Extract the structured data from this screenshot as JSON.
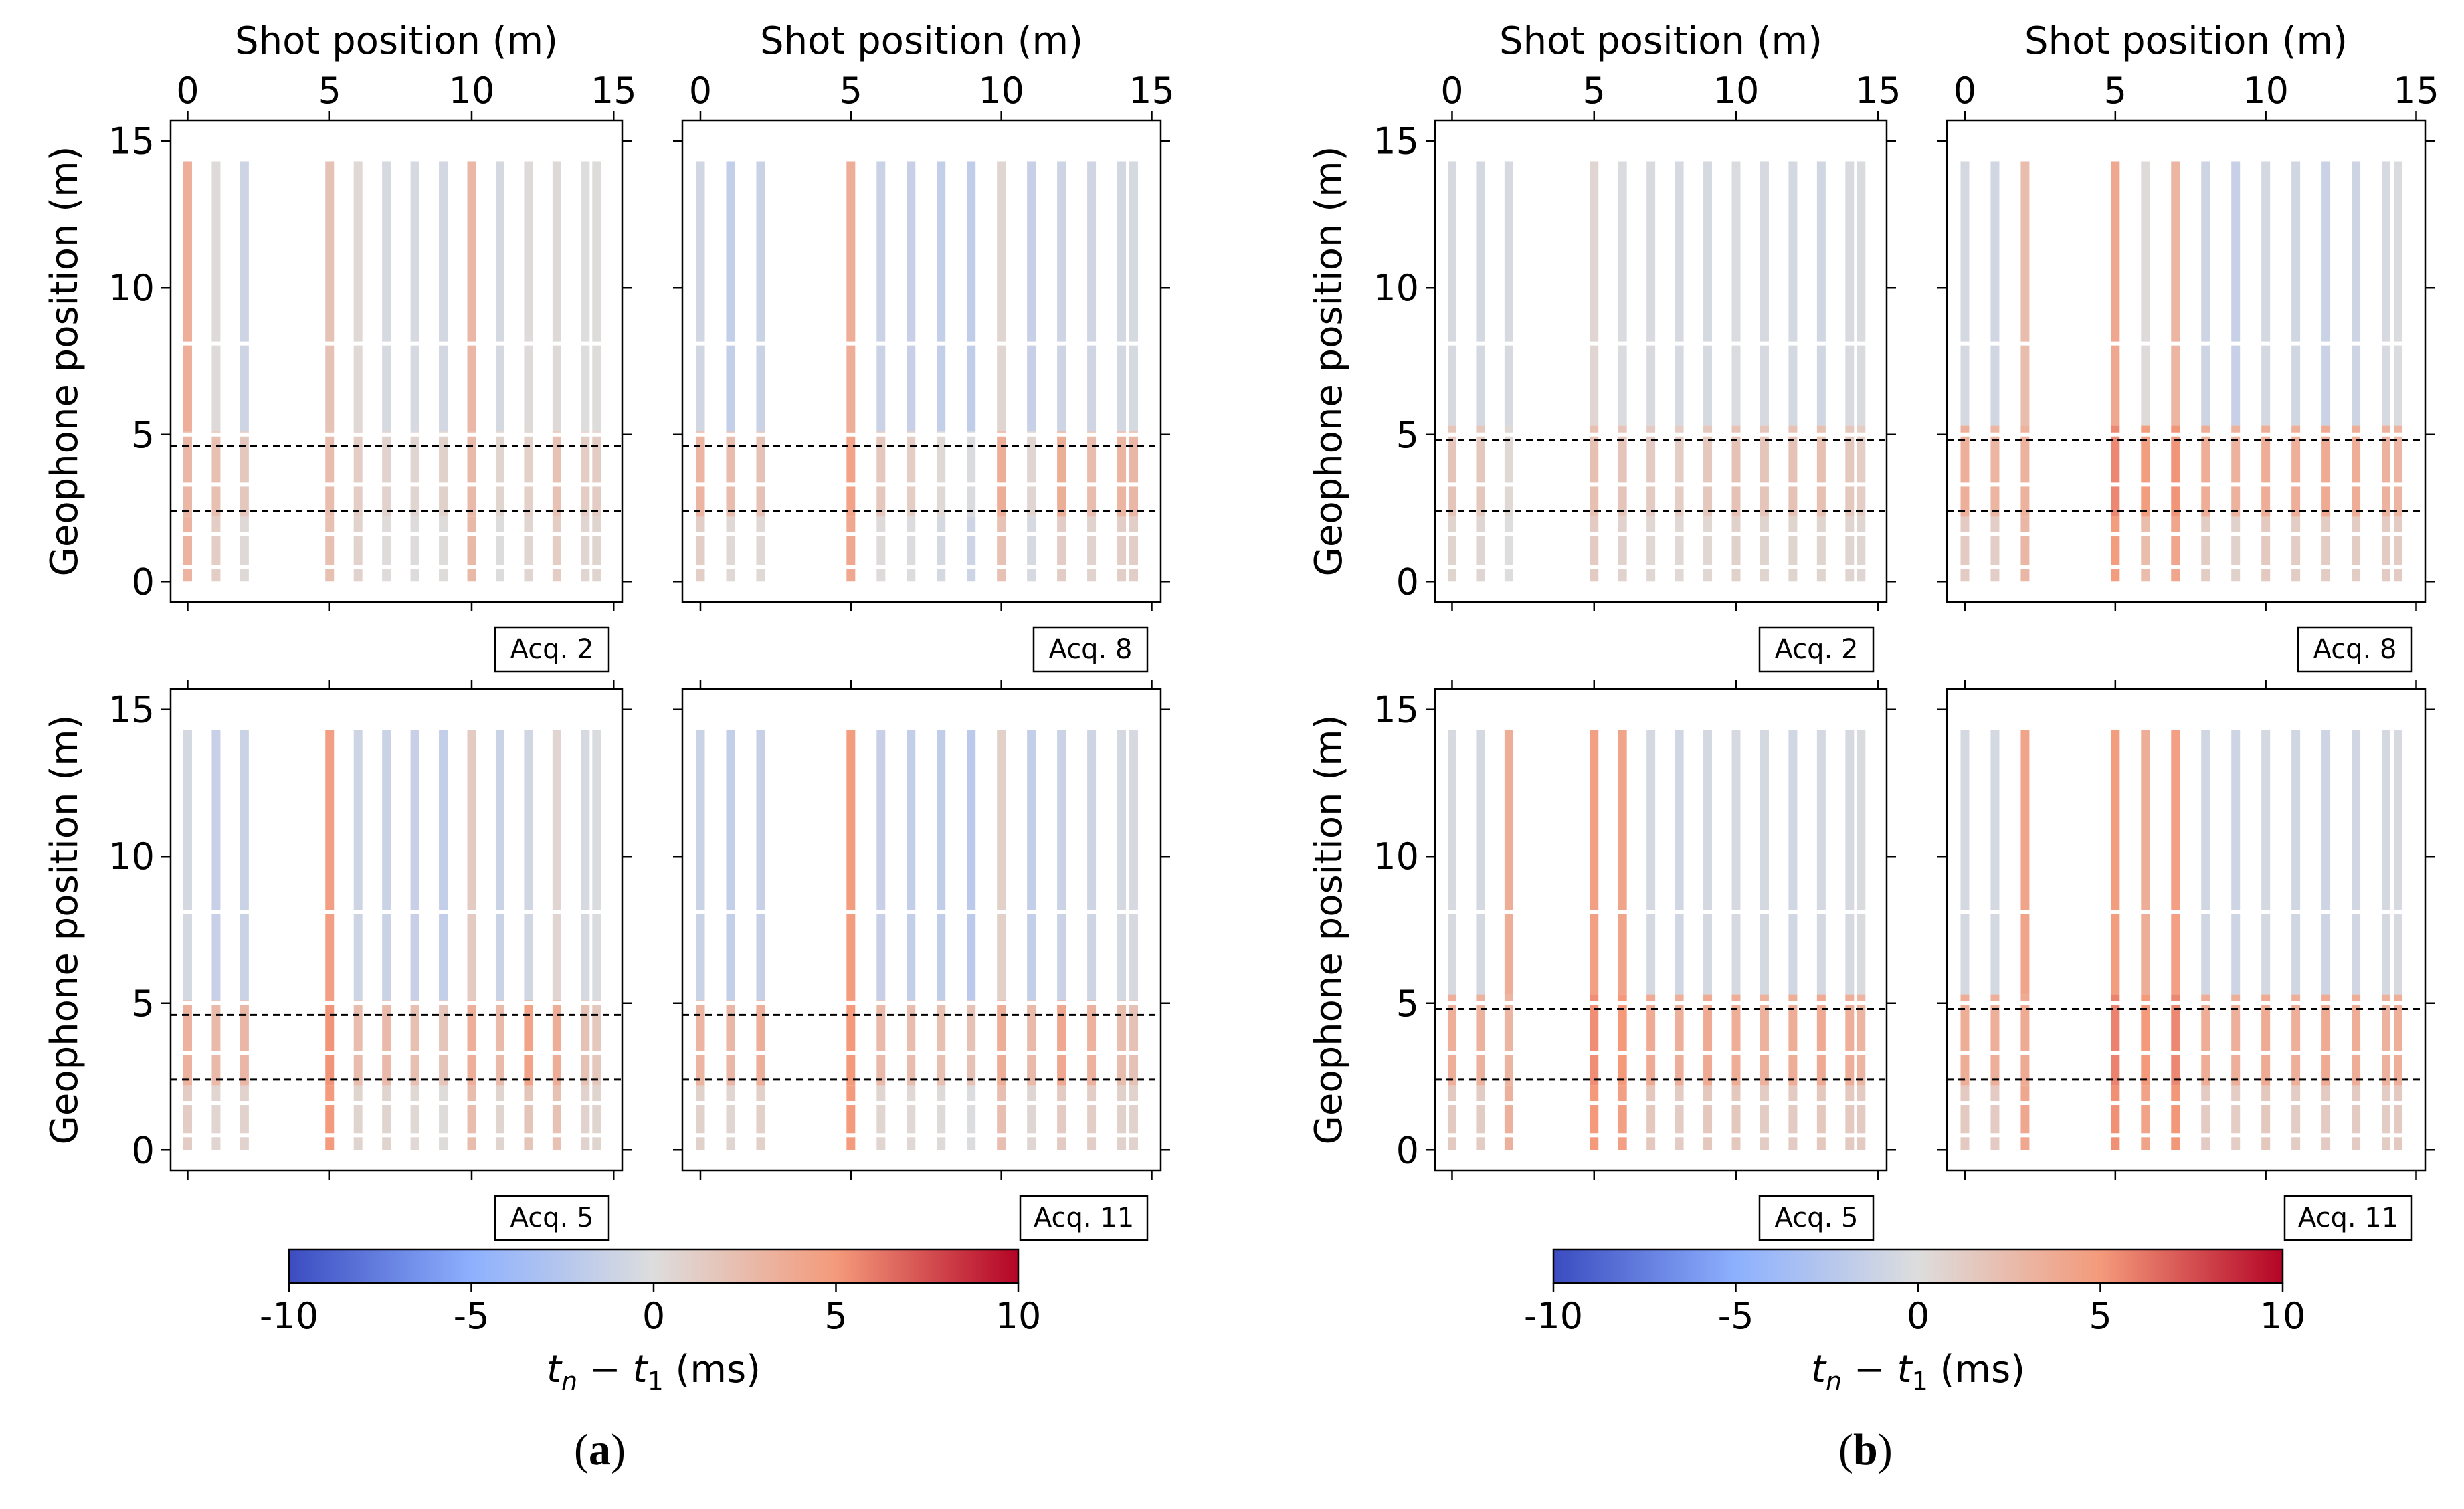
{
  "figure": {
    "panels": [
      {
        "label": "a",
        "xlabel": "Shot position (m)",
        "ylabel": "Geophone position (m)",
        "colorbar_label": "t_n − t_1 (ms)",
        "subplots": [
          {
            "acq": "Acq. 2",
            "tag_side": "left"
          },
          {
            "acq": "Acq. 8",
            "tag_side": "right"
          },
          {
            "acq": "Acq. 5",
            "tag_side": "left"
          },
          {
            "acq": "Acq. 11",
            "tag_side": "right"
          }
        ]
      },
      {
        "label": "b",
        "xlabel": "Shot position (m)",
        "ylabel": "Geophone position (m)",
        "colorbar_label": "t_n − t_1 (ms)",
        "subplots": [
          {
            "acq": "Acq. 2",
            "tag_side": "left"
          },
          {
            "acq": "Acq. 8",
            "tag_side": "right"
          },
          {
            "acq": "Acq. 5",
            "tag_side": "left"
          },
          {
            "acq": "Acq. 11",
            "tag_side": "right"
          }
        ]
      }
    ]
  },
  "chart_data": [
    {
      "type": "heatmap",
      "panel": "a",
      "title": "(a)",
      "xlabel": "Shot position (m)",
      "ylabel": "Geophone position (m)",
      "xlim": [
        -0.6,
        15.3
      ],
      "ylim": [
        -0.7,
        15.7
      ],
      "x_ticks": [
        0,
        5,
        10,
        15
      ],
      "y_ticks": [
        0,
        5,
        10,
        15
      ],
      "shot_positions": [
        0,
        1,
        2,
        5,
        6,
        7,
        8,
        9,
        10,
        11,
        12,
        13,
        14,
        14.4
      ],
      "geophone_range": [
        0,
        14.3
      ],
      "reference_lines_y": [
        4.6,
        2.4
      ],
      "colorbar": {
        "min": -10,
        "max": 10,
        "ticks": [
          -10,
          -5,
          0,
          5,
          10
        ],
        "colormap": "coolwarm",
        "label": "t_n − t_1 (ms)"
      },
      "subplots": [
        {
          "acq": "Acq. 2",
          "lower_zone_ms": [
            2.8,
            2.2,
            1.6,
            2.4,
            1.2,
            0.8,
            0.6,
            0.9,
            2.6,
            0.7,
            1.0,
            2.1,
            1.2,
            1.3
          ],
          "upper_zone_ms": [
            3.4,
            0.2,
            -1.0,
            2.0,
            0.4,
            -0.5,
            -0.4,
            -0.7,
            2.8,
            -0.6,
            0.2,
            0.3,
            0.0,
            0.1
          ]
        },
        {
          "acq": "Acq. 8",
          "lower_zone_ms": [
            3.0,
            2.4,
            2.0,
            4.4,
            1.6,
            1.2,
            0.4,
            -0.2,
            3.6,
            0.6,
            3.5,
            2.4,
            3.0,
            2.8
          ],
          "upper_zone_ms": [
            -0.8,
            -1.6,
            -1.2,
            3.6,
            -1.2,
            -1.4,
            -1.6,
            -1.8,
            0.6,
            -1.4,
            -1.0,
            -0.9,
            -0.7,
            -0.5
          ]
        },
        {
          "acq": "Acq. 5",
          "lower_zone_ms": [
            3.2,
            2.6,
            2.8,
            5.2,
            2.4,
            2.6,
            2.2,
            1.8,
            3.4,
            2.6,
            4.4,
            3.6,
            2.0,
            1.6
          ],
          "upper_zone_ms": [
            -0.6,
            -1.4,
            -1.2,
            4.6,
            -1.0,
            -1.2,
            -1.4,
            -1.6,
            1.4,
            -1.2,
            -0.8,
            0.6,
            -0.4,
            -0.2
          ]
        },
        {
          "acq": "Acq. 11",
          "lower_zone_ms": [
            3.0,
            2.8,
            3.4,
            5.0,
            2.6,
            2.4,
            2.2,
            2.0,
            3.6,
            2.6,
            4.0,
            3.2,
            2.4,
            2.0
          ],
          "upper_zone_ms": [
            -1.2,
            -1.6,
            -1.4,
            4.8,
            -1.4,
            -1.6,
            -1.8,
            -2.2,
            1.0,
            -1.6,
            -1.2,
            -1.0,
            -0.6,
            -0.4
          ]
        }
      ]
    },
    {
      "type": "heatmap",
      "panel": "b",
      "title": "(b)",
      "xlabel": "Shot position (m)",
      "ylabel": "Geophone position (m)",
      "xlim": [
        -0.6,
        15.3
      ],
      "ylim": [
        -0.7,
        15.7
      ],
      "x_ticks": [
        0,
        5,
        10,
        15
      ],
      "y_ticks": [
        0,
        5,
        10,
        15
      ],
      "shot_positions": [
        0,
        1,
        2,
        5,
        6,
        7,
        8,
        9,
        10,
        11,
        12,
        13,
        14,
        14.4
      ],
      "geophone_range": [
        0,
        14.3
      ],
      "reference_lines_y": [
        4.8,
        2.4
      ],
      "colorbar": {
        "min": -10,
        "max": 10,
        "ticks": [
          -10,
          -5,
          0,
          5,
          10
        ],
        "colormap": "coolwarm",
        "label": "t_n − t_1 (ms)"
      },
      "subplots": [
        {
          "acq": "Acq. 2",
          "lower_zone_ms": [
            1.8,
            1.6,
            0.4,
            2.2,
            1.8,
            1.4,
            1.2,
            1.6,
            2.0,
            1.8,
            2.0,
            2.2,
            1.6,
            1.2
          ],
          "upper_zone_ms": [
            -0.4,
            -0.6,
            -0.4,
            0.6,
            -0.2,
            -0.3,
            -0.4,
            -0.5,
            -0.2,
            -0.4,
            -0.6,
            -0.8,
            -0.3,
            -0.2
          ]
        },
        {
          "acq": "Acq. 8",
          "lower_zone_ms": [
            3.4,
            3.0,
            3.2,
            5.6,
            4.8,
            5.2,
            3.6,
            3.2,
            3.6,
            3.4,
            3.8,
            3.6,
            3.2,
            3.0
          ],
          "upper_zone_ms": [
            -0.6,
            -0.8,
            2.4,
            4.0,
            0.2,
            3.0,
            -1.0,
            -1.4,
            -0.6,
            -0.8,
            -1.2,
            -1.0,
            -0.4,
            -0.2
          ]
        },
        {
          "acq": "Acq. 5",
          "lower_zone_ms": [
            3.4,
            3.2,
            3.0,
            5.4,
            5.0,
            3.8,
            3.4,
            3.8,
            3.6,
            3.2,
            3.6,
            3.8,
            3.4,
            3.0
          ],
          "upper_zone_ms": [
            -0.4,
            -0.6,
            3.6,
            4.6,
            4.2,
            -0.6,
            -0.8,
            -0.6,
            -0.4,
            -0.6,
            -0.8,
            -0.6,
            -0.4,
            -0.2
          ]
        },
        {
          "acq": "Acq. 11",
          "lower_zone_ms": [
            3.6,
            3.4,
            3.8,
            5.8,
            5.0,
            5.6,
            3.6,
            3.4,
            3.8,
            3.4,
            3.8,
            3.6,
            3.2,
            3.4
          ],
          "upper_zone_ms": [
            -0.6,
            -0.6,
            4.2,
            4.8,
            3.6,
            4.6,
            -0.8,
            -1.0,
            -0.6,
            -0.8,
            -1.0,
            -0.8,
            -0.6,
            -0.4
          ]
        }
      ]
    }
  ]
}
